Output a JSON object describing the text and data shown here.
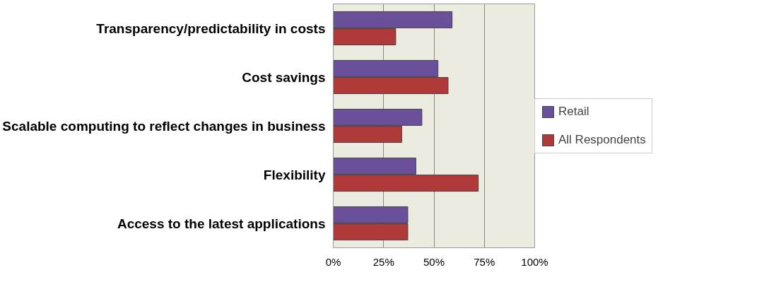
{
  "chart_data": {
    "type": "bar",
    "orientation": "horizontal",
    "categories": [
      "Transparency/predictability in costs",
      "Cost savings",
      "Scalable computing to reflect changes in business",
      "Flexibility",
      "Access to the latest applications"
    ],
    "series": [
      {
        "name": "Retail",
        "color": "#6a4f9a",
        "values": [
          59,
          52,
          44,
          41,
          37
        ]
      },
      {
        "name": "All Respondents",
        "color": "#b03a3a",
        "values": [
          31,
          57,
          34,
          72,
          37
        ]
      }
    ],
    "xlim": [
      0,
      100
    ],
    "xticks": [
      {
        "value": 0,
        "label": "0%"
      },
      {
        "value": 25,
        "label": "25%"
      },
      {
        "value": 50,
        "label": "50%"
      },
      {
        "value": 75,
        "label": "75%"
      },
      {
        "value": 100,
        "label": "100%"
      }
    ],
    "grid": "x",
    "legend": "right"
  }
}
